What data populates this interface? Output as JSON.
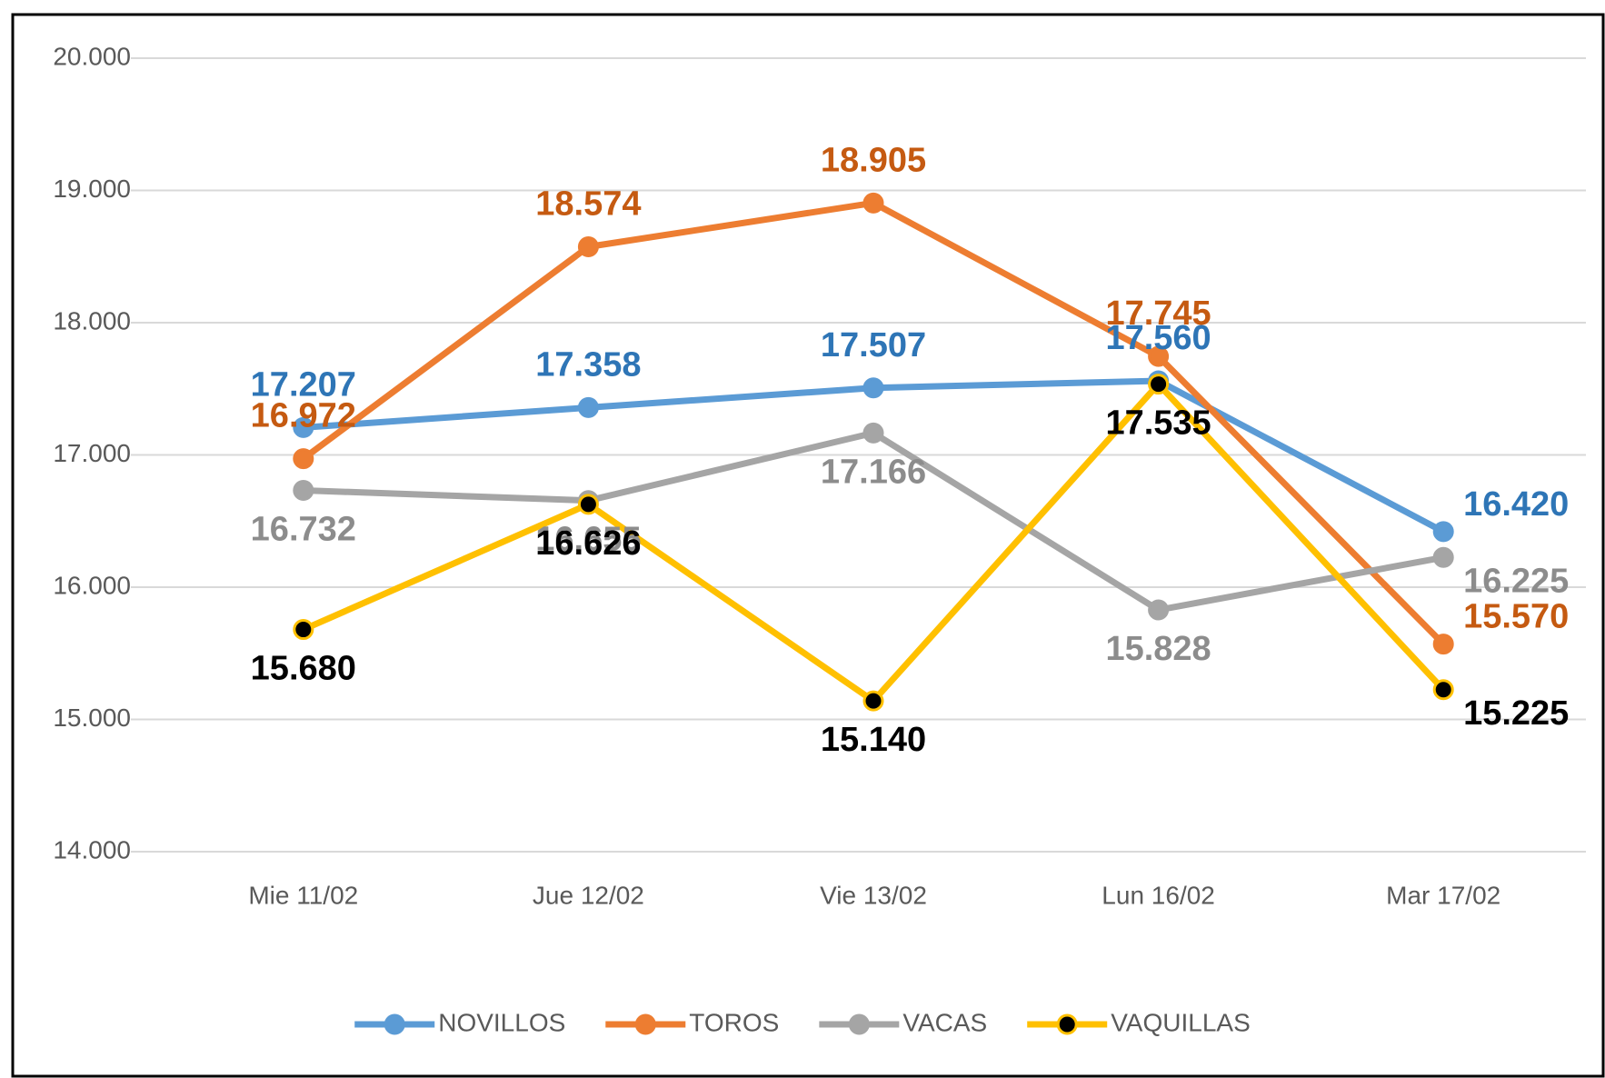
{
  "chart_data": {
    "type": "line",
    "categories": [
      "Mie 11/02",
      "Jue 12/02",
      "Vie 13/02",
      "Lun 16/02",
      "Mar 17/02"
    ],
    "series": [
      {
        "name": "NOVILLOS",
        "color": "#5b9bd5",
        "label_color": "#2e75b6",
        "marker_color": "#5b9bd5",
        "values": [
          17207,
          17358,
          17507,
          17560,
          16420
        ],
        "value_labels": [
          "17.207",
          "17.358",
          "17.507",
          "17.560",
          "16.420"
        ]
      },
      {
        "name": "TOROS",
        "color": "#ed7d31",
        "label_color": "#c55a11",
        "marker_color": "#ed7d31",
        "values": [
          16972,
          18574,
          18905,
          17745,
          15570
        ],
        "value_labels": [
          "16.972",
          "18.574",
          "18.905",
          "17.745",
          "15.570"
        ]
      },
      {
        "name": "VACAS",
        "color": "#a5a5a5",
        "label_color": "#8c8c8c",
        "marker_color": "#a5a5a5",
        "values": [
          16732,
          16655,
          17166,
          15828,
          16225
        ],
        "value_labels": [
          "16.732",
          "16.655",
          "17.166",
          "15.828",
          "16.225"
        ]
      },
      {
        "name": "VAQUILLAS",
        "color": "#ffc000",
        "label_color": "#000000",
        "marker_color": "#000000",
        "values": [
          15680,
          16626,
          15140,
          17535,
          15225
        ],
        "value_labels": [
          "15.680",
          "16.626",
          "15.140",
          "17.535",
          "15.225"
        ]
      }
    ],
    "ylim": [
      14000,
      20000
    ],
    "yticks": [
      {
        "value": 14000,
        "label": "14.000"
      },
      {
        "value": 15000,
        "label": "15.000"
      },
      {
        "value": 16000,
        "label": "16.000"
      },
      {
        "value": 17000,
        "label": "17.000"
      },
      {
        "value": 18000,
        "label": "18.000"
      },
      {
        "value": 19000,
        "label": "19.000"
      },
      {
        "value": 20000,
        "label": "20.000"
      }
    ],
    "grid": true,
    "legend": "bottom"
  }
}
